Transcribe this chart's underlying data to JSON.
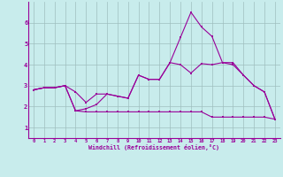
{
  "x": [
    0,
    1,
    2,
    3,
    4,
    5,
    6,
    7,
    8,
    9,
    10,
    11,
    12,
    13,
    14,
    15,
    16,
    17,
    18,
    19,
    20,
    21,
    22,
    23
  ],
  "line1": [
    2.8,
    2.9,
    2.9,
    3.0,
    1.8,
    1.9,
    2.1,
    2.6,
    2.5,
    2.4,
    3.5,
    3.3,
    3.3,
    4.1,
    5.3,
    6.5,
    5.8,
    5.35,
    4.1,
    4.1,
    3.5,
    3.0,
    2.7,
    1.4
  ],
  "line2": [
    2.8,
    2.9,
    2.9,
    3.0,
    2.7,
    2.2,
    2.6,
    2.6,
    2.5,
    2.4,
    3.5,
    3.3,
    3.3,
    4.1,
    4.0,
    3.6,
    4.05,
    4.0,
    4.1,
    4.0,
    3.5,
    3.0,
    2.7,
    1.4
  ],
  "line3": [
    2.8,
    2.9,
    2.9,
    3.0,
    1.8,
    1.75,
    1.75,
    1.75,
    1.75,
    1.75,
    1.75,
    1.75,
    1.75,
    1.75,
    1.75,
    1.75,
    1.75,
    1.5,
    1.5,
    1.5,
    1.5,
    1.5,
    1.5,
    1.4
  ],
  "bg_color": "#c8ecec",
  "line_color": "#990099",
  "grid_color": "#9fbfbf",
  "xlabel": "Windchill (Refroidissement éolien,°C)",
  "xlim": [
    -0.5,
    23.5
  ],
  "ylim": [
    0.5,
    7.0
  ],
  "yticks": [
    1,
    2,
    3,
    4,
    5,
    6
  ],
  "xticks": [
    0,
    1,
    2,
    3,
    4,
    5,
    6,
    7,
    8,
    9,
    10,
    11,
    12,
    13,
    14,
    15,
    16,
    17,
    18,
    19,
    20,
    21,
    22,
    23
  ]
}
